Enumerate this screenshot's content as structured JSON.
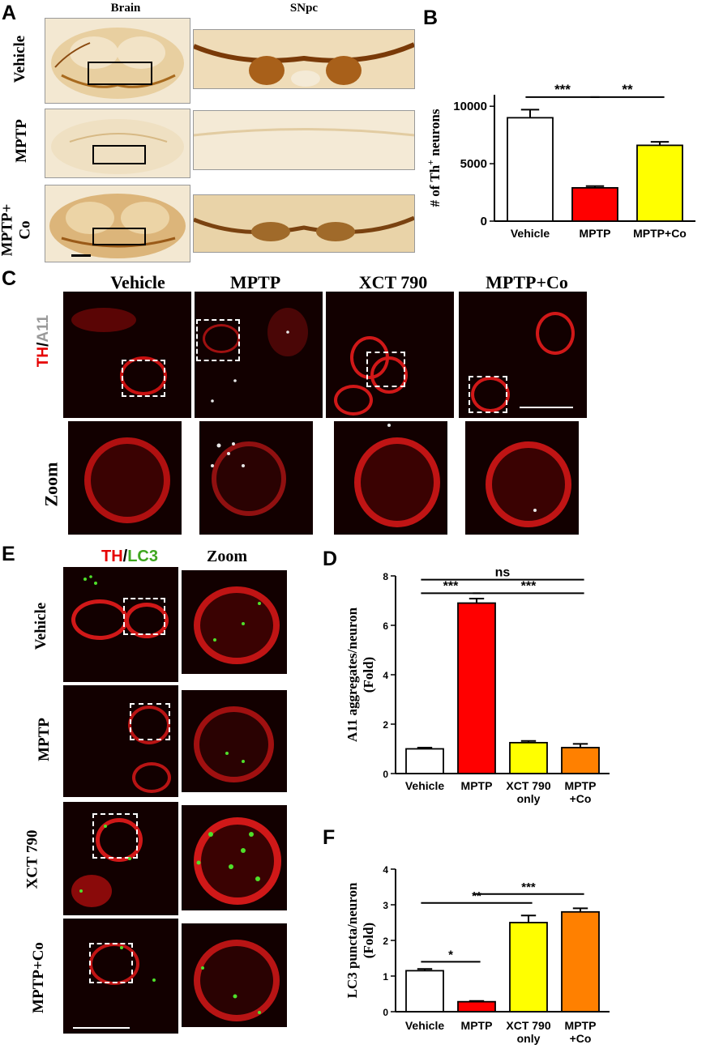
{
  "panels": {
    "A": {
      "label": "A",
      "col_headers": [
        "Brain",
        "SNpc"
      ],
      "row_labels": [
        "Vehicle",
        "MPTP",
        "MPTP+\nCo"
      ]
    },
    "B": {
      "label": "B"
    },
    "C": {
      "label": "C",
      "col_headers": [
        "Vehicle",
        "MPTP",
        "XCT 790",
        "MPTP+Co"
      ],
      "stain_red": "TH",
      "stain_sep": "/",
      "stain_other": "A11",
      "zoom_label": "Zoom"
    },
    "D": {
      "label": "D"
    },
    "E": {
      "label": "E",
      "stain_red": "TH",
      "stain_sep": "/",
      "stain_other": "LC3",
      "zoom_header": "Zoom",
      "row_labels": [
        "Vehicle",
        "MPTP",
        "XCT 790",
        "MPTP+Co"
      ]
    },
    "F": {
      "label": "F"
    }
  },
  "colors": {
    "vehicle": "#ffffff",
    "mptp": "#ff0000",
    "xct": "#ffff00",
    "mptp_co": "#ff8000",
    "mptp_co_B": "#ffff00"
  },
  "chart_data": [
    {
      "id": "B",
      "type": "bar",
      "categories": [
        "Vehicle",
        "MPTP",
        "MPTP+Co"
      ],
      "values": [
        9000,
        2900,
        6600
      ],
      "errors": [
        700,
        150,
        300
      ],
      "colors": [
        "#ffffff",
        "#ff0000",
        "#ffff00"
      ],
      "ylabel_pre": "# of Th",
      "ylabel_sup": "+",
      "ylabel_post": " neurons",
      "ylim": [
        0,
        11000
      ],
      "yticks": [
        0,
        5000,
        10000
      ],
      "significance": [
        {
          "from": 0,
          "to": 1,
          "label": "***",
          "y": 10800
        },
        {
          "from": 1,
          "to": 2,
          "label": "**",
          "y": 10800
        }
      ]
    },
    {
      "id": "D",
      "type": "bar",
      "categories": [
        [
          "Vehicle"
        ],
        [
          "MPTP"
        ],
        [
          "XCT 790",
          "only"
        ],
        [
          "MPTP",
          "+Co"
        ]
      ],
      "values": [
        1.0,
        6.9,
        1.25,
        1.05
      ],
      "errors": [
        0.05,
        0.18,
        0.07,
        0.15
      ],
      "colors": [
        "#ffffff",
        "#ff0000",
        "#ffff00",
        "#ff8000"
      ],
      "ylabel_lines": [
        "A11 aggregates/neuron",
        "(Fold)"
      ],
      "ylim": [
        0,
        8
      ],
      "yticks": [
        0,
        2,
        4,
        6,
        8
      ],
      "significance": [
        {
          "from": 0,
          "to": 3,
          "label": "ns",
          "y": 7.85
        },
        {
          "from": 0,
          "to": 1,
          "label": "***",
          "y": 7.3
        },
        {
          "from": 1,
          "to": 3,
          "label": "***",
          "y": 7.3
        }
      ]
    },
    {
      "id": "F",
      "type": "bar",
      "categories": [
        [
          "Vehicle"
        ],
        [
          "MPTP"
        ],
        [
          "XCT 790",
          "only"
        ],
        [
          "MPTP",
          "+Co"
        ]
      ],
      "values": [
        1.15,
        0.28,
        2.5,
        2.8
      ],
      "errors": [
        0.05,
        0.02,
        0.2,
        0.1
      ],
      "colors": [
        "#ffffff",
        "#ff0000",
        "#ffff00",
        "#ff8000"
      ],
      "ylabel_lines": [
        "LC3 puncta/neuron",
        "(Fold)"
      ],
      "ylim": [
        0,
        4
      ],
      "yticks": [
        0,
        1,
        2,
        3,
        4
      ],
      "significance": [
        {
          "from": 1,
          "to": 3,
          "label": "***",
          "y": 3.3
        },
        {
          "from": 0,
          "to": 2,
          "label": "**",
          "y": 3.05
        },
        {
          "from": 0,
          "to": 1,
          "label": "*",
          "y": 1.4
        }
      ]
    }
  ]
}
